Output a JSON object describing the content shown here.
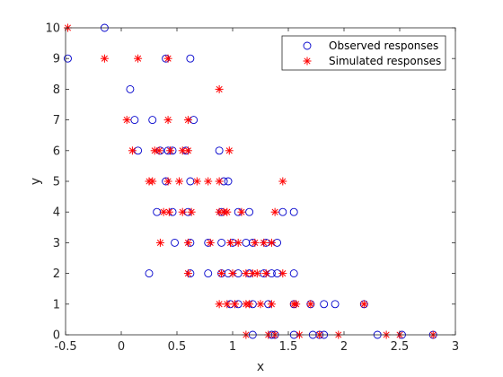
{
  "chart_data": {
    "type": "scatter",
    "xlabel": "x",
    "ylabel": "y",
    "xlim": [
      -0.5,
      3
    ],
    "ylim": [
      0,
      10
    ],
    "xticks": [
      "-0.5",
      "0",
      "0.5",
      "1",
      "1.5",
      "2",
      "2.5",
      "3"
    ],
    "yticks": [
      "0",
      "1",
      "2",
      "3",
      "4",
      "5",
      "6",
      "7",
      "8",
      "9",
      "10"
    ],
    "grid": false,
    "legend_location": "top-right",
    "series": [
      {
        "name": "Observed responses",
        "marker": "circle",
        "color": "#0000cc",
        "points": [
          [
            -0.15,
            10
          ],
          [
            -0.48,
            9
          ],
          [
            0.4,
            9
          ],
          [
            0.62,
            9
          ],
          [
            0.08,
            8
          ],
          [
            0.12,
            7
          ],
          [
            0.28,
            7
          ],
          [
            0.65,
            7
          ],
          [
            0.15,
            6
          ],
          [
            0.35,
            6
          ],
          [
            0.42,
            6
          ],
          [
            0.46,
            6
          ],
          [
            0.58,
            6
          ],
          [
            0.88,
            6
          ],
          [
            0.4,
            5
          ],
          [
            0.62,
            5
          ],
          [
            0.92,
            5
          ],
          [
            0.96,
            5
          ],
          [
            0.32,
            4
          ],
          [
            0.46,
            4
          ],
          [
            0.6,
            4
          ],
          [
            0.9,
            4
          ],
          [
            1.05,
            4
          ],
          [
            1.15,
            4
          ],
          [
            1.45,
            4
          ],
          [
            1.55,
            4
          ],
          [
            0.48,
            3
          ],
          [
            0.62,
            3
          ],
          [
            0.78,
            3
          ],
          [
            0.9,
            3
          ],
          [
            1.0,
            3
          ],
          [
            1.12,
            3
          ],
          [
            1.18,
            3
          ],
          [
            1.3,
            3
          ],
          [
            1.4,
            3
          ],
          [
            0.25,
            2
          ],
          [
            0.62,
            2
          ],
          [
            0.78,
            2
          ],
          [
            0.9,
            2
          ],
          [
            0.96,
            2
          ],
          [
            1.05,
            2
          ],
          [
            1.15,
            2
          ],
          [
            1.28,
            2
          ],
          [
            1.35,
            2
          ],
          [
            1.4,
            2
          ],
          [
            1.55,
            2
          ],
          [
            0.98,
            1
          ],
          [
            1.05,
            1
          ],
          [
            1.18,
            1
          ],
          [
            1.32,
            1
          ],
          [
            1.55,
            1
          ],
          [
            1.7,
            1
          ],
          [
            1.82,
            1
          ],
          [
            1.92,
            1
          ],
          [
            2.18,
            1
          ],
          [
            1.18,
            0
          ],
          [
            1.35,
            0
          ],
          [
            1.38,
            0
          ],
          [
            1.55,
            0
          ],
          [
            1.72,
            0
          ],
          [
            1.78,
            0
          ],
          [
            1.82,
            0
          ],
          [
            2.3,
            0
          ],
          [
            2.52,
            0
          ],
          [
            2.8,
            0
          ]
        ]
      },
      {
        "name": "Simulated responses",
        "marker": "asterisk",
        "color": "#ff0000",
        "points": [
          [
            -0.48,
            10
          ],
          [
            -0.15,
            9
          ],
          [
            0.15,
            9
          ],
          [
            0.42,
            9
          ],
          [
            0.88,
            8
          ],
          [
            0.05,
            7
          ],
          [
            0.42,
            7
          ],
          [
            0.6,
            7
          ],
          [
            0.1,
            6
          ],
          [
            0.3,
            6
          ],
          [
            0.34,
            6
          ],
          [
            0.44,
            6
          ],
          [
            0.55,
            6
          ],
          [
            0.6,
            6
          ],
          [
            0.97,
            6
          ],
          [
            0.25,
            5
          ],
          [
            0.28,
            5
          ],
          [
            0.42,
            5
          ],
          [
            0.52,
            5
          ],
          [
            0.68,
            5
          ],
          [
            0.78,
            5
          ],
          [
            0.88,
            5
          ],
          [
            1.45,
            5
          ],
          [
            0.38,
            4
          ],
          [
            0.43,
            4
          ],
          [
            0.55,
            4
          ],
          [
            0.63,
            4
          ],
          [
            0.88,
            4
          ],
          [
            0.92,
            4
          ],
          [
            0.95,
            4
          ],
          [
            1.08,
            4
          ],
          [
            1.38,
            4
          ],
          [
            0.35,
            3
          ],
          [
            0.6,
            3
          ],
          [
            0.8,
            3
          ],
          [
            0.98,
            3
          ],
          [
            1.05,
            3
          ],
          [
            1.2,
            3
          ],
          [
            1.28,
            3
          ],
          [
            1.35,
            3
          ],
          [
            0.6,
            2
          ],
          [
            0.9,
            2
          ],
          [
            1.0,
            2
          ],
          [
            1.12,
            2
          ],
          [
            1.18,
            2
          ],
          [
            1.22,
            2
          ],
          [
            1.3,
            2
          ],
          [
            1.45,
            2
          ],
          [
            0.88,
            1
          ],
          [
            0.95,
            1
          ],
          [
            1.02,
            1
          ],
          [
            1.12,
            1
          ],
          [
            1.15,
            1
          ],
          [
            1.25,
            1
          ],
          [
            1.35,
            1
          ],
          [
            1.55,
            1
          ],
          [
            1.57,
            1
          ],
          [
            1.7,
            1
          ],
          [
            2.18,
            1
          ],
          [
            1.12,
            0
          ],
          [
            1.32,
            0
          ],
          [
            1.38,
            0
          ],
          [
            1.6,
            0
          ],
          [
            1.78,
            0
          ],
          [
            1.95,
            0
          ],
          [
            2.38,
            0
          ],
          [
            2.5,
            0
          ],
          [
            2.8,
            0
          ]
        ]
      }
    ]
  }
}
